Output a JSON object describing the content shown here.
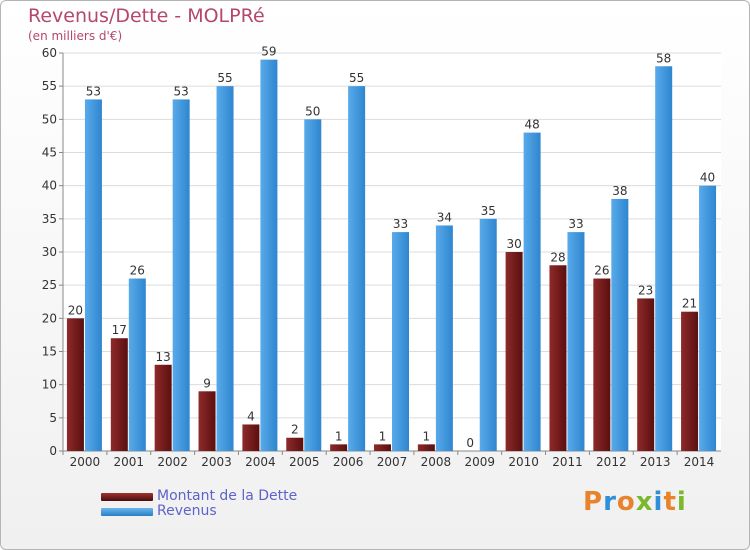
{
  "title": "Revenus/Dette - MOLPRé",
  "subtitle": "(en milliers d'€)",
  "logo": {
    "text": "Proxiti"
  },
  "colors": {
    "dette": "#7a1e1e",
    "revenus": "#3d96dc",
    "title": "#b5476d",
    "legend_text": "#5e63c9"
  },
  "legend": [
    {
      "label": "Montant de la Dette",
      "color": "#7a1e1e"
    },
    {
      "label": "Revenus",
      "color": "#3d96dc"
    }
  ],
  "chart_data": {
    "type": "bar",
    "title": "Revenus/Dette - MOLPRé",
    "subtitle": "(en milliers d'€)",
    "categories": [
      "2000",
      "2001",
      "2002",
      "2003",
      "2004",
      "2005",
      "2006",
      "2007",
      "2008",
      "2009",
      "2010",
      "2011",
      "2012",
      "2013",
      "2014"
    ],
    "series": [
      {
        "name": "Montant de la Dette",
        "values": [
          20,
          17,
          13,
          9,
          4,
          2,
          1,
          1,
          1,
          0,
          30,
          28,
          26,
          23,
          21
        ]
      },
      {
        "name": "Revenus",
        "values": [
          53,
          26,
          53,
          55,
          59,
          50,
          55,
          33,
          34,
          35,
          48,
          33,
          38,
          58,
          40
        ]
      }
    ],
    "ylim": [
      0,
      60
    ],
    "yticks": [
      0,
      5,
      10,
      15,
      20,
      25,
      30,
      35,
      40,
      45,
      50,
      55,
      60
    ],
    "grid": true,
    "legend_position": "bottom-left"
  }
}
